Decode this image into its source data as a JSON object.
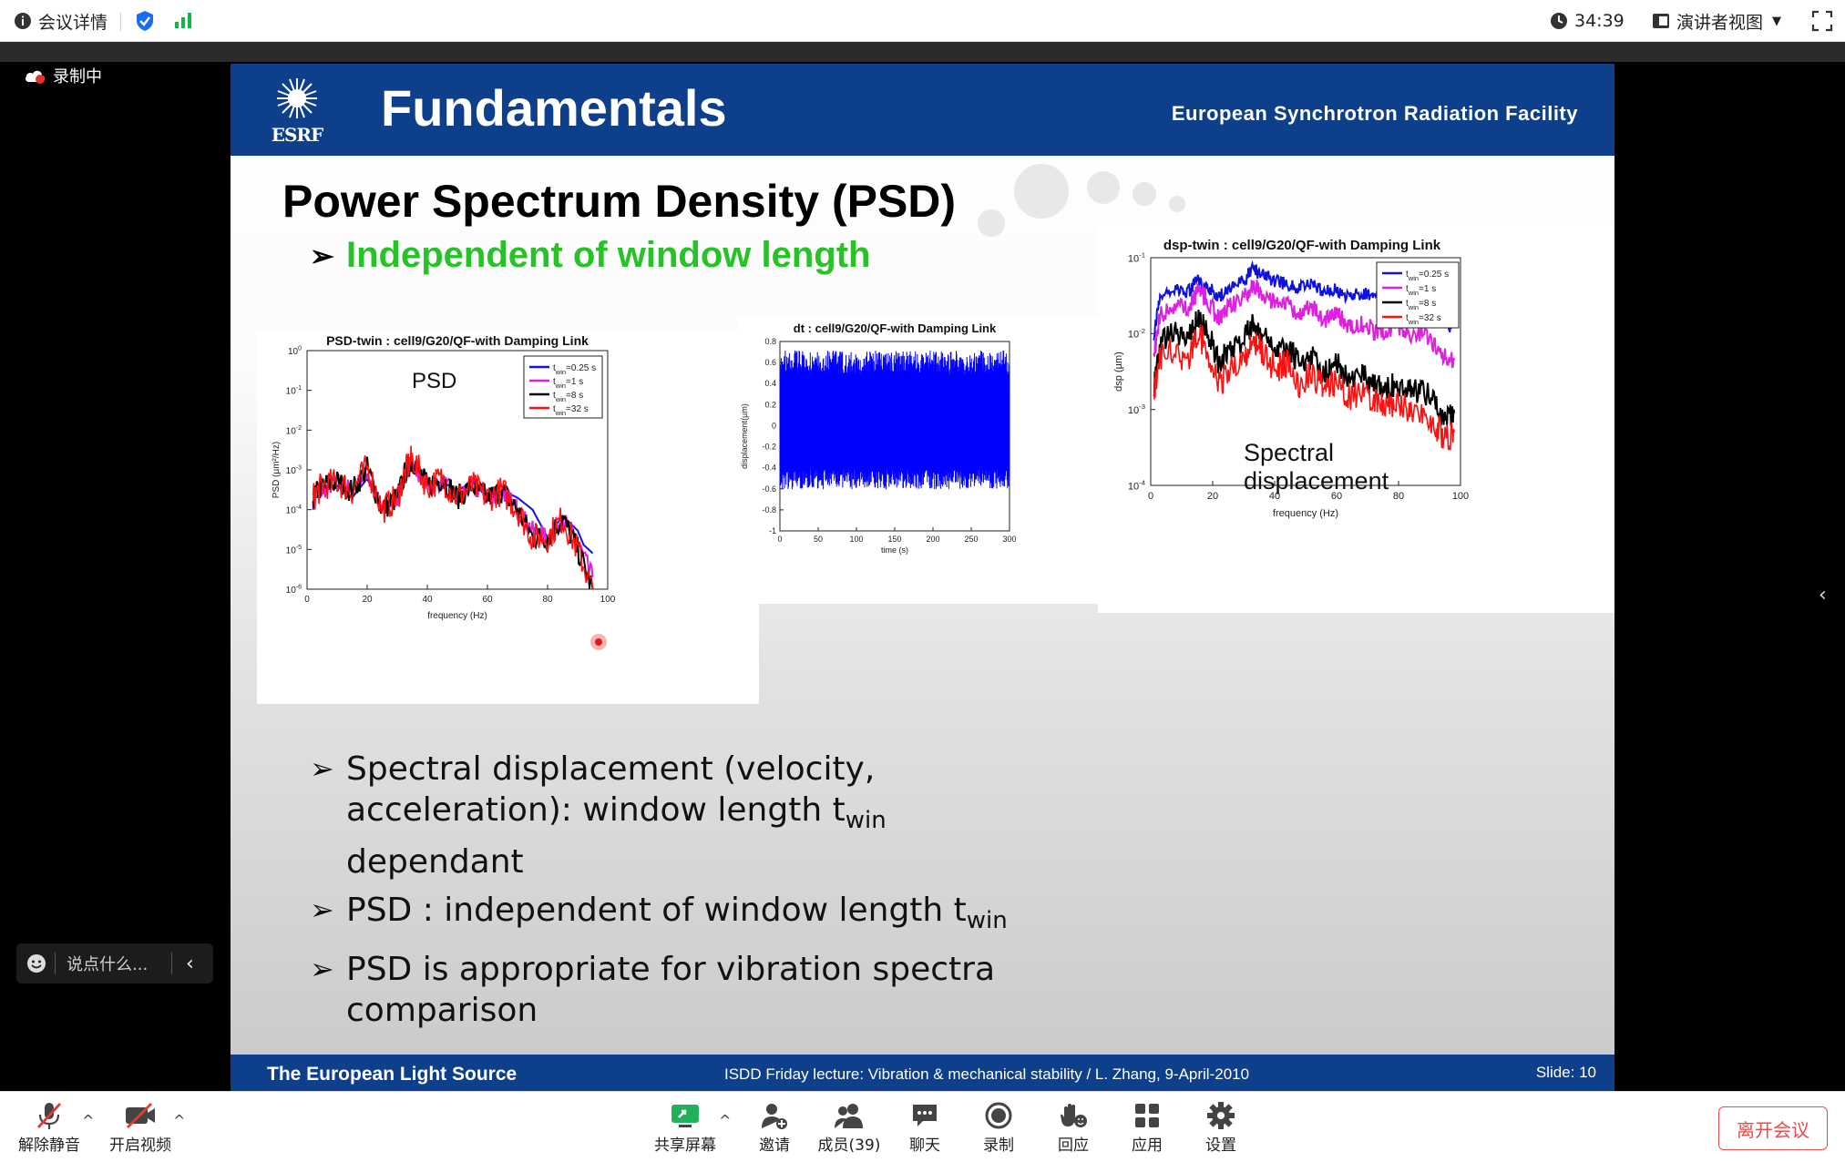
{
  "topbar": {
    "meeting_info": "会议详情",
    "timer": "34:39",
    "view_mode": "演讲者视图"
  },
  "stage": {
    "recording": "录制中",
    "chat_placeholder": "说点什么..."
  },
  "slide": {
    "header_title": "Fundamentals",
    "logo_text": "ESRF",
    "organization": "European Synchrotron Radiation Facility",
    "heading": "Power Spectrum Density (PSD)",
    "sub_bullet": "Independent of window length",
    "bullets": {
      "b1_l1": "Spectral displacement (velocity,",
      "b1_l2": "acceleration): window length t",
      "b1_sub": "win",
      "b1_l3": "dependant",
      "b2": "PSD : independent of window length t",
      "b2_sub": "win",
      "b3_l1": "PSD is appropriate for vibration spectra",
      "b3_l2": "comparison"
    },
    "footer_left": "The European Light Source",
    "footer_center": "ISDD Friday lecture: Vibration & mechanical stability / L. Zhang,  9-April-2010",
    "footer_right": "Slide: 10"
  },
  "chart_data": [
    {
      "type": "line",
      "title": "PSD-twin : cell9/G20/QF-with Damping Link",
      "annotation": "PSD",
      "xlabel": "frequency (Hz)",
      "ylabel": "PSD (µm²/Hz)",
      "xlim": [
        0,
        100
      ],
      "ylim": [
        1e-06,
        1
      ],
      "yscale": "log",
      "xticks": [
        "0",
        "20",
        "40",
        "60",
        "80",
        "100"
      ],
      "yticks": [
        "10^0",
        "10^-1",
        "10^-2",
        "10^-3",
        "10^-4",
        "10^-5",
        "10^-6"
      ],
      "legend": [
        "twin=0.25 s",
        "twin=1 s",
        "twin=8 s",
        "twin=32 s"
      ],
      "legend_position": "top-right",
      "series": [
        {
          "name": "twin=0.25 s",
          "color": "#1010e0",
          "x": [
            2,
            3,
            5,
            10,
            15,
            20,
            25,
            30,
            33,
            35,
            40,
            45,
            50,
            55,
            60,
            65,
            70,
            75,
            80,
            85,
            90,
            92,
            95
          ],
          "y": [
            0.0001,
            0.0003,
            0.0004,
            0.0004,
            0.0002,
            0.0006,
            0.0001,
            0.0002,
            0.0008,
            0.0012,
            0.0004,
            0.0005,
            0.0003,
            0.0005,
            0.0002,
            0.0003,
            0.0002,
            0.0001,
            2e-05,
            7e-05,
            3e-05,
            1.3e-05,
            8e-06
          ]
        },
        {
          "name": "twin=1 s",
          "color": "#e020e0",
          "x": [
            2,
            5,
            10,
            15,
            20,
            25,
            30,
            33,
            35,
            40,
            45,
            50,
            55,
            60,
            65,
            70,
            75,
            80,
            85,
            90,
            95
          ],
          "y": [
            0.0002,
            0.0003,
            0.0005,
            0.0003,
            0.0009,
            0.0001,
            0.0002,
            0.001,
            0.0015,
            0.0004,
            0.0005,
            0.0002,
            0.0004,
            0.0002,
            0.0003,
            0.0001,
            3e-05,
            2e-05,
            6e-05,
            1.5e-05,
            2e-06
          ]
        },
        {
          "name": "twin=8 s",
          "color": "#000000",
          "x": [
            2,
            5,
            10,
            15,
            20,
            25,
            30,
            33,
            35,
            40,
            45,
            50,
            55,
            60,
            65,
            70,
            75,
            80,
            85,
            90,
            95
          ],
          "y": [
            0.0002,
            0.0004,
            0.0005,
            0.0003,
            0.0011,
            0.0001,
            0.0002,
            0.001,
            0.0018,
            0.0004,
            0.0006,
            0.0002,
            0.0004,
            0.0002,
            0.0003,
            0.0001,
            2e-05,
            2e-05,
            6e-05,
            1e-05,
            1e-06
          ]
        },
        {
          "name": "twin=32 s",
          "color": "#ff1010",
          "x": [
            2,
            5,
            10,
            15,
            20,
            25,
            30,
            33,
            35,
            40,
            45,
            50,
            55,
            60,
            65,
            70,
            75,
            80,
            85,
            90,
            95
          ],
          "y": [
            0.0002,
            0.0004,
            0.0005,
            0.0003,
            0.0012,
            0.0001,
            0.0002,
            0.001,
            0.002,
            0.0004,
            0.0006,
            0.0002,
            0.0004,
            0.0002,
            0.0003,
            0.0001,
            2e-05,
            2e-05,
            6e-05,
            1e-05,
            1e-06
          ]
        }
      ]
    },
    {
      "type": "line",
      "title": "dt : cell9/G20/QF-with Damping Link",
      "xlabel": "time (s)",
      "ylabel": "displacement(µm)",
      "xlim": [
        0,
        300
      ],
      "ylim": [
        -1,
        0.8
      ],
      "xticks": [
        "0",
        "50",
        "100",
        "150",
        "200",
        "250",
        "300"
      ],
      "yticks": [
        "0.8",
        "0.6",
        "0.4",
        "0.2",
        "0",
        "-0.2",
        "-0.4",
        "-0.6",
        "-0.8",
        "-1"
      ],
      "series": [
        {
          "color": "#0000ff",
          "x": [
            0,
            300
          ],
          "y": [
            -0.55,
            0.65
          ],
          "note_amplitude_range": [
            -0.7,
            0.7
          ]
        }
      ]
    },
    {
      "type": "line",
      "title": "dsp-twin : cell9/G20/QF-with Damping Link",
      "annotation": "Spectral displacement",
      "xlabel": "frequency (Hz)",
      "ylabel": "dsp (µm)",
      "xlim": [
        0,
        100
      ],
      "ylim": [
        0.0001,
        0.1
      ],
      "yscale": "log",
      "xticks": [
        "0",
        "20",
        "40",
        "60",
        "80",
        "100"
      ],
      "yticks": [
        "10^-1",
        "10^-2",
        "10^-3",
        "10^-4"
      ],
      "legend": [
        "twin=0.25 s",
        "twin=1 s",
        "twin=8 s",
        "twin=32 s"
      ],
      "legend_position": "top-right",
      "series": [
        {
          "name": "twin=0.25 s",
          "color": "#1010e0",
          "x": [
            1,
            3,
            8,
            12,
            15,
            18,
            22,
            25,
            30,
            33,
            36,
            40,
            44,
            48,
            52,
            56,
            60,
            64,
            68,
            72,
            76,
            80,
            84,
            88,
            92,
            95,
            97
          ],
          "y": [
            0.01,
            0.03,
            0.04,
            0.035,
            0.05,
            0.045,
            0.03,
            0.04,
            0.05,
            0.07,
            0.06,
            0.05,
            0.045,
            0.04,
            0.045,
            0.035,
            0.038,
            0.03,
            0.035,
            0.03,
            0.028,
            0.03,
            0.025,
            0.03,
            0.02,
            0.015,
            0.012
          ]
        },
        {
          "name": "twin=1 s",
          "color": "#e020e0",
          "x": [
            1,
            3,
            8,
            12,
            15,
            18,
            22,
            25,
            30,
            33,
            36,
            40,
            44,
            48,
            52,
            56,
            60,
            64,
            68,
            72,
            76,
            80,
            84,
            88,
            92,
            95,
            98
          ],
          "y": [
            0.005,
            0.018,
            0.025,
            0.02,
            0.035,
            0.03,
            0.015,
            0.022,
            0.03,
            0.045,
            0.035,
            0.025,
            0.025,
            0.018,
            0.022,
            0.015,
            0.018,
            0.012,
            0.014,
            0.011,
            0.01,
            0.012,
            0.009,
            0.01,
            0.007,
            0.005,
            0.0045
          ]
        },
        {
          "name": "twin=8 s",
          "color": "#000000",
          "x": [
            1,
            3,
            8,
            12,
            15,
            18,
            22,
            25,
            30,
            33,
            36,
            40,
            44,
            48,
            52,
            56,
            60,
            64,
            68,
            72,
            76,
            80,
            84,
            88,
            92,
            95,
            98
          ],
          "y": [
            0.002,
            0.008,
            0.01,
            0.008,
            0.015,
            0.012,
            0.004,
            0.006,
            0.008,
            0.015,
            0.01,
            0.006,
            0.007,
            0.004,
            0.005,
            0.003,
            0.004,
            0.0025,
            0.003,
            0.002,
            0.002,
            0.0022,
            0.0017,
            0.0018,
            0.0012,
            0.0007,
            0.0009
          ]
        },
        {
          "name": "twin=32 s",
          "color": "#ff1010",
          "x": [
            1,
            3,
            8,
            12,
            15,
            18,
            22,
            25,
            30,
            33,
            36,
            40,
            44,
            48,
            52,
            56,
            60,
            64,
            68,
            72,
            76,
            80,
            84,
            88,
            92,
            95,
            98
          ],
          "y": [
            0.0015,
            0.005,
            0.006,
            0.004,
            0.01,
            0.007,
            0.002,
            0.003,
            0.005,
            0.008,
            0.006,
            0.0035,
            0.004,
            0.0022,
            0.003,
            0.0018,
            0.0022,
            0.0014,
            0.0018,
            0.0012,
            0.0011,
            0.0012,
            0.0009,
            0.0009,
            0.0006,
            0.0004,
            0.0005
          ]
        }
      ]
    }
  ],
  "bottombar": {
    "mute": "解除静音",
    "video": "开启视频",
    "share": "共享屏幕",
    "invite": "邀请",
    "members": "成员(39)",
    "chat": "聊天",
    "record": "录制",
    "reactions": "回应",
    "apps": "应用",
    "settings": "设置",
    "leave": "离开会议"
  },
  "colors": {
    "slide_blue": "#0e3f8a",
    "accent_green": "#27c227",
    "leave_red": "#e94b4b",
    "share_green": "#1fb25a"
  }
}
